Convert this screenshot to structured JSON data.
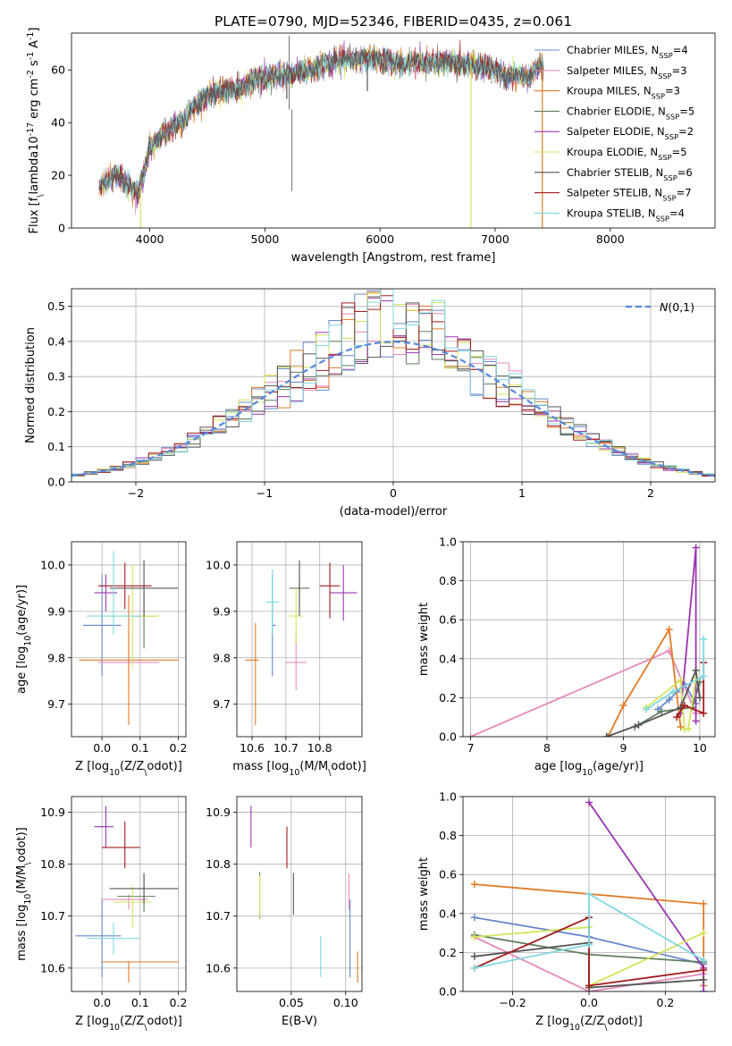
{
  "figure": {
    "title": "PLATE=0790, MJD=52346, FIBERID=0435, z=0.061"
  },
  "models": [
    {
      "name": "Chabrier MILES",
      "nssp": "4",
      "color": "#6688cc"
    },
    {
      "name": "Salpeter MILES",
      "nssp": "3",
      "color": "#e68aba"
    },
    {
      "name": "Kroupa MILES",
      "nssp": "3",
      "color": "#e07b28"
    },
    {
      "name": "Chabrier ELODIE",
      "nssp": "5",
      "color": "#5f7f5f"
    },
    {
      "name": "Salpeter ELODIE",
      "nssp": "2",
      "color": "#9b36b0"
    },
    {
      "name": "Kroupa ELODIE",
      "nssp": "5",
      "color": "#d4e45a"
    },
    {
      "name": "Chabrier STELIB",
      "nssp": "6",
      "color": "#555555"
    },
    {
      "name": "Salpeter STELIB",
      "nssp": "7",
      "color": "#a51c1c"
    },
    {
      "name": "Kroupa STELIB",
      "nssp": "4",
      "color": "#7fd8e0"
    }
  ],
  "chart_data": [
    {
      "id": "spectrum",
      "type": "line",
      "xlabel": "wavelength [Angstrom, rest frame]",
      "ylabel": "Flux [f$_\\lambda$10$^{-17}$ erg cm$^{-2}$ s$^{-1}$ A$^{-1}$]",
      "xlim": [
        3320,
        8910
      ],
      "ylim": [
        0,
        74
      ],
      "xticks": [
        4000,
        5000,
        6000,
        7000,
        8000
      ],
      "yticks": [
        0,
        20,
        40,
        60
      ],
      "data_x_range": [
        3560,
        7420
      ],
      "data_profile": [
        [
          3560,
          15
        ],
        [
          3700,
          21
        ],
        [
          3800,
          17
        ],
        [
          3900,
          13
        ],
        [
          4000,
          30
        ],
        [
          4100,
          35
        ],
        [
          4200,
          38
        ],
        [
          4300,
          41
        ],
        [
          4400,
          47
        ],
        [
          4500,
          50
        ],
        [
          4600,
          52
        ],
        [
          4700,
          52
        ],
        [
          4800,
          53
        ],
        [
          4900,
          56
        ],
        [
          5000,
          57
        ],
        [
          5100,
          58
        ],
        [
          5200,
          58
        ],
        [
          5300,
          59
        ],
        [
          5400,
          60
        ],
        [
          5500,
          62
        ],
        [
          5600,
          63
        ],
        [
          5700,
          64
        ],
        [
          5800,
          64
        ],
        [
          5900,
          64
        ],
        [
          6000,
          64
        ],
        [
          6100,
          63
        ],
        [
          6200,
          62
        ],
        [
          6300,
          63
        ],
        [
          6400,
          63
        ],
        [
          6500,
          63
        ],
        [
          6600,
          63
        ],
        [
          6700,
          62
        ],
        [
          6800,
          62
        ],
        [
          6900,
          61
        ],
        [
          7000,
          60
        ],
        [
          7100,
          58
        ],
        [
          7200,
          58
        ],
        [
          7300,
          57
        ],
        [
          7400,
          63
        ],
        [
          7420,
          60
        ]
      ],
      "spikes": [
        [
          5210,
          73
        ],
        [
          5235,
          14
        ]
      ],
      "dips": [
        [
          3920,
          0,
          "#d4e45a"
        ],
        [
          6790,
          0,
          "#d4e45a"
        ],
        [
          7410,
          0,
          "#e07b28"
        ],
        [
          5890,
          52,
          "#555555"
        ],
        [
          5190,
          49,
          "#555555"
        ]
      ],
      "legend_position": "upper right",
      "grid": false
    },
    {
      "id": "residuals",
      "type": "histogram",
      "xlabel": "(data-model)/error",
      "ylabel": "Normed distribution",
      "xlim": [
        -2.5,
        2.5
      ],
      "ylim": [
        0,
        0.55
      ],
      "xticks": [
        -2,
        -1,
        0,
        1,
        2
      ],
      "yticks": [
        0.0,
        0.1,
        0.2,
        0.3,
        0.4,
        0.5
      ],
      "bin_width": 0.1,
      "reference": {
        "label": "$\\mathcal{N}(0,1)$",
        "mean": 0,
        "sigma": 1,
        "color": "#5588dd",
        "style": "dashed"
      },
      "legend_position": "upper right",
      "grid": true
    },
    {
      "id": "age-vs-Z",
      "type": "scatter",
      "xlabel": "Z [log$_{10}$($Z$/$Z_\\odot$)]",
      "ylabel": "age  [log$_{10}$($age$/$yr$)]",
      "xlim": [
        -0.08,
        0.22
      ],
      "ylim": [
        9.63,
        10.05
      ],
      "xticks": [
        0.0,
        0.1,
        0.2
      ],
      "yticks": [
        9.7,
        9.8,
        9.9,
        10.0
      ],
      "grid": true,
      "points": [
        {
          "m": 0,
          "x": 0.0,
          "y": 9.87,
          "xerr": [
            0.05,
            0.05
          ],
          "yerr": [
            0.11,
            0.11
          ]
        },
        {
          "m": 1,
          "x": 0.07,
          "y": 9.79,
          "xerr": [
            0.08,
            0.08
          ],
          "yerr": [
            0.06,
            0.06
          ]
        },
        {
          "m": 2,
          "x": 0.07,
          "y": 9.795,
          "xerr": [
            0.13,
            0.13
          ],
          "yerr": [
            0.14,
            0.14
          ]
        },
        {
          "m": 3,
          "x": 0.11,
          "y": 9.89,
          "xerr": [
            0.03,
            0.03
          ],
          "yerr": [
            0.07,
            0.07
          ]
        },
        {
          "m": 4,
          "x": 0.01,
          "y": 9.94,
          "xerr": [
            0.03,
            0.03
          ],
          "yerr": [
            0.04,
            0.04
          ]
        },
        {
          "m": 5,
          "x": 0.08,
          "y": 9.89,
          "xerr": [
            0.07,
            0.07
          ],
          "yerr": [
            0.11,
            0.11
          ]
        },
        {
          "m": 6,
          "x": 0.11,
          "y": 9.95,
          "xerr": [
            0.09,
            0.09
          ],
          "yerr": [
            0.06,
            0.06
          ]
        },
        {
          "m": 7,
          "x": 0.06,
          "y": 9.955,
          "xerr": [
            0.07,
            0.07
          ],
          "yerr": [
            0.05,
            0.05
          ]
        },
        {
          "m": 8,
          "x": 0.03,
          "y": 9.89,
          "xerr": [
            0.07,
            0.07
          ],
          "yerr": [
            0.04,
            0.14
          ]
        }
      ]
    },
    {
      "id": "age-vs-mass",
      "type": "scatter",
      "xlabel": "mass [log$_{10}$($M$/$M_\\odot$)]",
      "ylabel": "",
      "xlim": [
        10.555,
        10.925
      ],
      "ylim": [
        9.63,
        10.05
      ],
      "xticks": [
        10.6,
        10.7,
        10.8
      ],
      "yticks": [
        9.7,
        9.8,
        9.9,
        10.0
      ],
      "grid": true,
      "points": [
        {
          "m": 0,
          "x": 10.66,
          "y": 9.87,
          "xerr": [
            0.0,
            0.01
          ],
          "yerr": [
            0.11,
            0.11
          ]
        },
        {
          "m": 1,
          "x": 10.73,
          "y": 9.79,
          "xerr": [
            0.03,
            0.03
          ],
          "yerr": [
            0.06,
            0.06
          ]
        },
        {
          "m": 2,
          "x": 10.61,
          "y": 9.795,
          "xerr": [
            0.03,
            0.01
          ],
          "yerr": [
            0.14,
            0.08
          ]
        },
        {
          "m": 3,
          "x": 10.74,
          "y": 9.95,
          "xerr": [
            0.03,
            0.03
          ],
          "yerr": [
            0.04,
            0.03
          ]
        },
        {
          "m": 4,
          "x": 10.87,
          "y": 9.94,
          "xerr": [
            0.04,
            0.04
          ],
          "yerr": [
            0.06,
            0.06
          ]
        },
        {
          "m": 5,
          "x": 10.73,
          "y": 9.89,
          "xerr": [
            0.02,
            0.02
          ],
          "yerr": [
            0.06,
            0.06
          ]
        },
        {
          "m": 6,
          "x": 10.74,
          "y": 9.95,
          "xerr": [
            0.0,
            0.0
          ],
          "yerr": [
            0.06,
            0.06
          ]
        },
        {
          "m": 7,
          "x": 10.83,
          "y": 9.955,
          "xerr": [
            0.03,
            0.03
          ],
          "yerr": [
            0.07,
            0.05
          ]
        },
        {
          "m": 8,
          "x": 10.66,
          "y": 9.92,
          "xerr": [
            0.02,
            0.02
          ],
          "yerr": [
            0.07,
            0.07
          ]
        }
      ]
    },
    {
      "id": "mass-weight-vs-age",
      "type": "line",
      "xlabel": "age  [log$_{10}$($age$/$yr$)]",
      "ylabel": "mass weight",
      "xlim": [
        6.9,
        10.2
      ],
      "ylim": [
        0,
        1.0
      ],
      "xticks": [
        7,
        8,
        9,
        10
      ],
      "yticks": [
        0.0,
        0.2,
        0.4,
        0.6,
        0.8,
        1.0
      ],
      "grid": true,
      "series": [
        {
          "m": 0,
          "x": [
            9.45,
            9.6,
            9.7,
            9.8,
            9.95
          ],
          "y": [
            0.14,
            0.19,
            0.23,
            0.27,
            0.17
          ]
        },
        {
          "m": 1,
          "x": [
            7.0,
            9.6,
            9.95
          ],
          "y": [
            0.0,
            0.44,
            0.12
          ]
        },
        {
          "m": 2,
          "x": [
            8.8,
            9.0,
            9.6,
            9.75
          ],
          "y": [
            0.0,
            0.16,
            0.55,
            0.05
          ]
        },
        {
          "m": 3,
          "x": [
            9.15,
            9.5,
            9.9,
            10.0
          ],
          "y": [
            0.05,
            0.13,
            0.15,
            0.28
          ]
        },
        {
          "m": 4,
          "x": [
            9.75,
            9.95,
            9.95
          ],
          "y": [
            0.12,
            0.97,
            0.08
          ]
        },
        {
          "m": 5,
          "x": [
            9.3,
            9.75,
            9.8,
            9.85,
            9.95
          ],
          "y": [
            0.15,
            0.29,
            0.04,
            0.04,
            0.3
          ]
        },
        {
          "m": 6,
          "x": [
            8.78,
            9.2,
            9.75,
            9.95,
            10.0
          ],
          "y": [
            0.0,
            0.06,
            0.15,
            0.34,
            0.2
          ]
        },
        {
          "m": 7,
          "x": [
            9.7,
            9.8,
            10.05,
            10.05
          ],
          "y": [
            0.1,
            0.16,
            0.12,
            0.38
          ]
        },
        {
          "m": 8,
          "x": [
            9.3,
            9.65,
            10.05,
            10.05
          ],
          "y": [
            0.14,
            0.23,
            0.31,
            0.5
          ]
        }
      ]
    },
    {
      "id": "mass-vs-Z",
      "type": "scatter",
      "xlabel": "Z [log$_{10}$($Z$/$Z_\\odot$)]",
      "ylabel": "mass [log$_{10}$($M$/$M_\\odot$)]",
      "xlim": [
        -0.08,
        0.22
      ],
      "ylim": [
        10.555,
        10.93
      ],
      "xticks": [
        0.0,
        0.1,
        0.2
      ],
      "yticks": [
        10.6,
        10.7,
        10.8,
        10.9
      ],
      "grid": true,
      "points": [
        {
          "m": 0,
          "x": 0.0,
          "y": 10.662,
          "xerr": [
            0.07,
            0.05
          ],
          "yerr": [
            0.08,
            0.07
          ]
        },
        {
          "m": 1,
          "x": 0.07,
          "y": 10.732,
          "xerr": [
            0.07,
            0.05
          ],
          "yerr": [
            0.02,
            0.01
          ]
        },
        {
          "m": 2,
          "x": 0.07,
          "y": 10.612,
          "xerr": [
            0.07,
            0.13
          ],
          "yerr": [
            0.04,
            0.0
          ]
        },
        {
          "m": 3,
          "x": 0.11,
          "y": 10.738,
          "xerr": [
            0.07,
            0.03
          ],
          "yerr": [
            0.03,
            0.04
          ]
        },
        {
          "m": 4,
          "x": 0.01,
          "y": 10.872,
          "xerr": [
            0.03,
            0.02
          ],
          "yerr": [
            0.04,
            0.04
          ]
        },
        {
          "m": 5,
          "x": 0.08,
          "y": 10.727,
          "xerr": [
            0.05,
            0.05
          ],
          "yerr": [
            0.05,
            0.03
          ]
        },
        {
          "m": 6,
          "x": 0.11,
          "y": 10.753,
          "xerr": [
            0.09,
            0.09
          ],
          "yerr": [
            0.03,
            0.03
          ]
        },
        {
          "m": 7,
          "x": 0.06,
          "y": 10.832,
          "xerr": [
            0.06,
            0.04
          ],
          "yerr": [
            0.04,
            0.05
          ]
        },
        {
          "m": 8,
          "x": 0.03,
          "y": 10.657,
          "xerr": [
            0.07,
            0.07
          ],
          "yerr": [
            0.03,
            0.03
          ]
        }
      ]
    },
    {
      "id": "mass-vs-ebv",
      "type": "scatter",
      "xlabel": "E(B-V)",
      "ylabel": "",
      "xlim": [
        0.0,
        0.115
      ],
      "ylim": [
        10.555,
        10.93
      ],
      "xticks": [
        0.05,
        0.1
      ],
      "yticks": [
        10.6,
        10.7,
        10.8,
        10.9
      ],
      "grid": true,
      "points": [
        {
          "m": 0,
          "x": 0.104,
          "y": 10.662,
          "xerr": [
            0,
            0
          ],
          "yerr": [
            0.08,
            0.07
          ]
        },
        {
          "m": 1,
          "x": 0.103,
          "y": 10.732,
          "xerr": [
            0,
            0
          ],
          "yerr": [
            0.02,
            0.05
          ]
        },
        {
          "m": 2,
          "x": 0.111,
          "y": 10.612,
          "xerr": [
            0,
            0
          ],
          "yerr": [
            0.04,
            0.02
          ]
        },
        {
          "m": 3,
          "x": 0.021,
          "y": 10.745,
          "xerr": [
            0,
            0
          ],
          "yerr": [
            0.05,
            0.04
          ]
        },
        {
          "m": 4,
          "x": 0.013,
          "y": 10.872,
          "xerr": [
            0,
            0
          ],
          "yerr": [
            0.04,
            0.04
          ]
        },
        {
          "m": 5,
          "x": 0.021,
          "y": 10.738,
          "xerr": [
            0,
            0
          ],
          "yerr": [
            0.04,
            0.04
          ]
        },
        {
          "m": 6,
          "x": 0.052,
          "y": 10.753,
          "xerr": [
            0,
            0
          ],
          "yerr": [
            0.05,
            0.03
          ]
        },
        {
          "m": 7,
          "x": 0.046,
          "y": 10.832,
          "xerr": [
            0,
            0
          ],
          "yerr": [
            0.04,
            0.04
          ]
        },
        {
          "m": 8,
          "x": 0.077,
          "y": 10.622,
          "xerr": [
            0,
            0
          ],
          "yerr": [
            0.04,
            0.04
          ]
        }
      ]
    },
    {
      "id": "mass-weight-vs-Z",
      "type": "line",
      "xlabel": "Z [log$_{10}$($Z$/$Z_\\odot$)]",
      "ylabel": "mass weight",
      "xlim": [
        -0.33,
        0.33
      ],
      "ylim": [
        0,
        1.0
      ],
      "xticks": [
        -0.2,
        0.0,
        0.2
      ],
      "yticks": [
        0.0,
        0.2,
        0.4,
        0.6,
        0.8,
        1.0
      ],
      "grid": true,
      "series": [
        {
          "m": 0,
          "x": [
            -0.3,
            0.0,
            0.3
          ],
          "y": [
            0.38,
            0.28,
            0.14
          ]
        },
        {
          "m": 1,
          "x": [
            -0.3,
            0.0,
            0.3
          ],
          "y": [
            0.28,
            0.0,
            0.09
          ]
        },
        {
          "m": 2,
          "x": [
            -0.3,
            0.3,
            0.3
          ],
          "y": [
            0.55,
            0.45,
            0.03
          ]
        },
        {
          "m": 3,
          "x": [
            -0.3,
            0.0,
            0.3
          ],
          "y": [
            0.29,
            0.19,
            0.15
          ]
        },
        {
          "m": 4,
          "x": [
            0.0,
            0.3,
            0.3
          ],
          "y": [
            0.97,
            0.12,
            0.0
          ]
        },
        {
          "m": 5,
          "x": [
            -0.3,
            0.0,
            0.0,
            0.3
          ],
          "y": [
            0.28,
            0.33,
            0.03,
            0.3
          ]
        },
        {
          "m": 6,
          "x": [
            -0.3,
            0.0,
            0.0,
            0.3
          ],
          "y": [
            0.18,
            0.25,
            0.02,
            0.06
          ]
        },
        {
          "m": 7,
          "x": [
            -0.3,
            0.0,
            0.0,
            0.3
          ],
          "y": [
            0.12,
            0.38,
            0.03,
            0.11
          ]
        },
        {
          "m": 8,
          "x": [
            -0.3,
            0.0,
            0.0,
            0.3
          ],
          "y": [
            0.12,
            0.24,
            0.5,
            0.16
          ]
        }
      ]
    }
  ]
}
